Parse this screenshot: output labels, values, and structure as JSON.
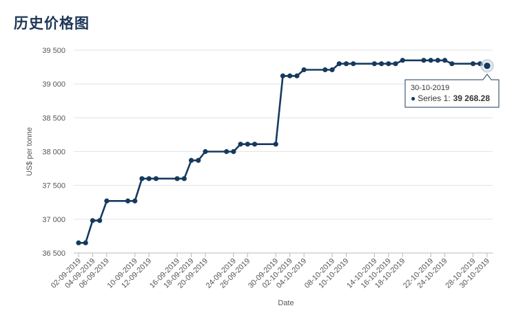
{
  "page": {
    "title": "历史价格图"
  },
  "chart_data": {
    "type": "line",
    "title": "",
    "xlabel": "Date",
    "ylabel": "US$ per tonne",
    "ylim": [
      36500,
      39500
    ],
    "yticks": [
      36500,
      37000,
      37500,
      38000,
      38500,
      39000,
      39500
    ],
    "ytick_labels": [
      "36 500",
      "37 000",
      "37 500",
      "38 000",
      "38 500",
      "39 000",
      "39 500"
    ],
    "grid": true,
    "line_color": "#163a5f",
    "xtick_labels": [
      "02-09-2019",
      "04-09-2019",
      "06-09-2019",
      "10-09-2019",
      "12-09-2019",
      "16-09-2019",
      "18-09-2019",
      "20-09-2019",
      "24-09-2019",
      "26-09-2019",
      "30-09-2019",
      "02-10-2019",
      "04-10-2019",
      "08-10-2019",
      "10-10-2019",
      "14-10-2019",
      "16-10-2019",
      "18-10-2019",
      "22-10-2019",
      "24-10-2019",
      "28-10-2019",
      "30-10-2019"
    ],
    "series": [
      {
        "name": "Series 1",
        "x": [
          "02-09-2019",
          "03-09-2019",
          "04-09-2019",
          "05-09-2019",
          "06-09-2019",
          "09-09-2019",
          "10-09-2019",
          "11-09-2019",
          "12-09-2019",
          "13-09-2019",
          "16-09-2019",
          "17-09-2019",
          "18-09-2019",
          "19-09-2019",
          "20-09-2019",
          "23-09-2019",
          "24-09-2019",
          "25-09-2019",
          "26-09-2019",
          "27-09-2019",
          "30-09-2019",
          "01-10-2019",
          "02-10-2019",
          "03-10-2019",
          "04-10-2019",
          "07-10-2019",
          "08-10-2019",
          "09-10-2019",
          "10-10-2019",
          "11-10-2019",
          "14-10-2019",
          "15-10-2019",
          "16-10-2019",
          "17-10-2019",
          "18-10-2019",
          "21-10-2019",
          "22-10-2019",
          "23-10-2019",
          "24-10-2019",
          "25-10-2019",
          "28-10-2019",
          "29-10-2019",
          "30-10-2019"
        ],
        "values": [
          36650,
          36650,
          36980,
          36980,
          37270,
          37270,
          37270,
          37600,
          37600,
          37600,
          37600,
          37600,
          37870,
          37870,
          38000,
          38000,
          38000,
          38110,
          38110,
          38110,
          38110,
          39120,
          39120,
          39120,
          39210,
          39210,
          39210,
          39300,
          39300,
          39300,
          39300,
          39300,
          39300,
          39300,
          39350,
          39350,
          39350,
          39350,
          39350,
          39300,
          39300,
          39300,
          39268.28
        ]
      }
    ],
    "tooltip": {
      "date": "30-10-2019",
      "series_label": "Series 1:",
      "value_label": "39 268.28"
    }
  }
}
